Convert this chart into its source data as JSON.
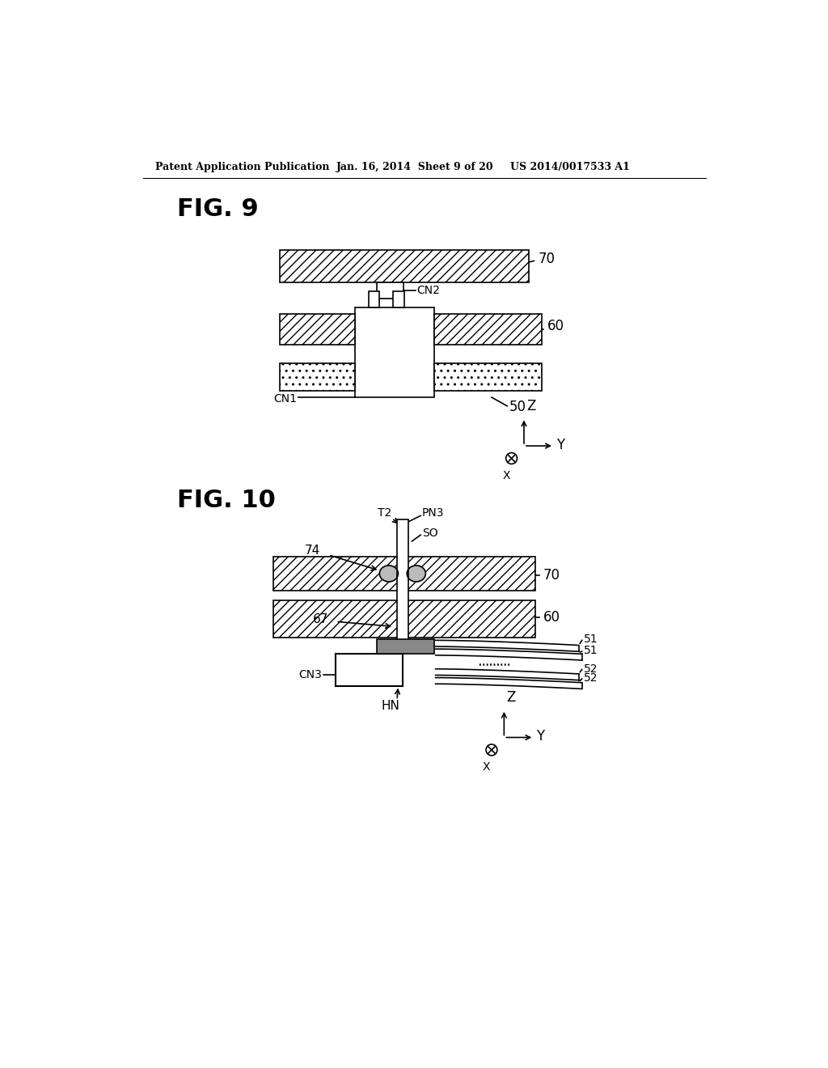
{
  "bg_color": "#ffffff",
  "header_left": "Patent Application Publication",
  "header_mid": "Jan. 16, 2014  Sheet 9 of 20",
  "header_right": "US 2014/0017533 A1",
  "fig9_label": "FIG. 9",
  "fig10_label": "FIG. 10",
  "hatch_pattern": "///",
  "line_color": "#000000",
  "gray_fill": "#888888",
  "light_gray": "#bbbbbb",
  "white_fill": "#ffffff"
}
